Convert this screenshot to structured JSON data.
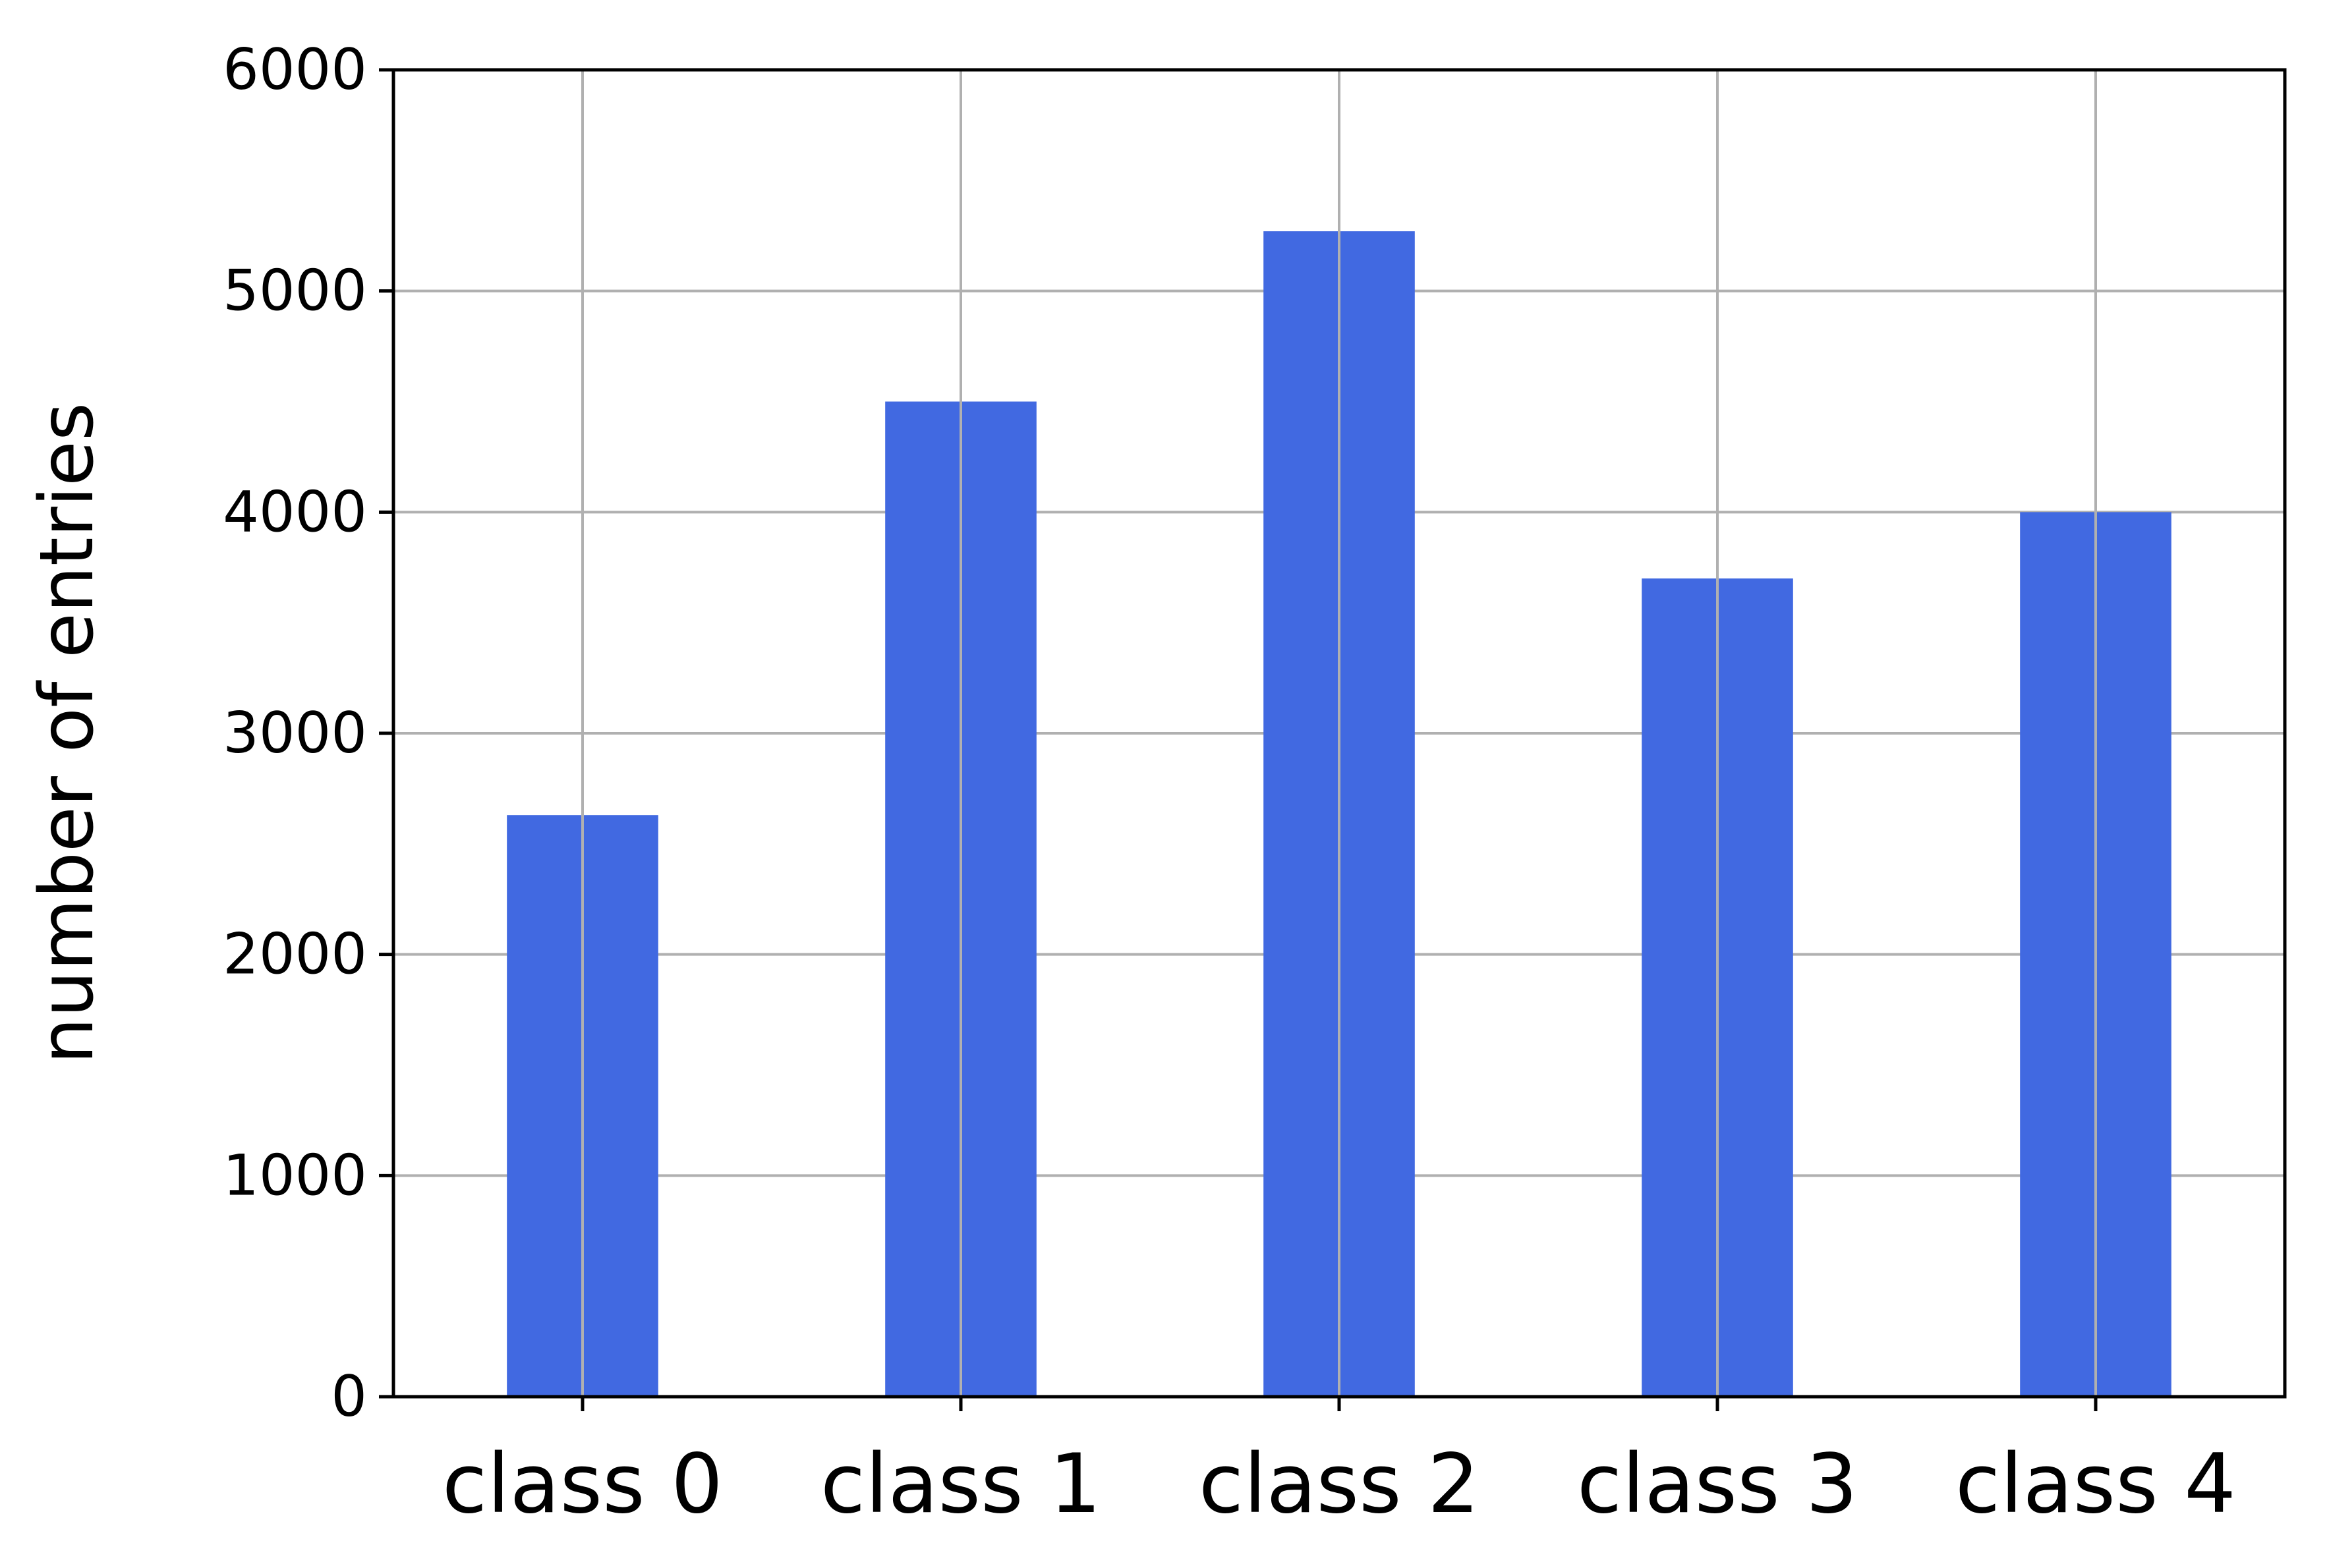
{
  "chart_data": {
    "type": "bar",
    "title": "",
    "xlabel": "",
    "ylabel": "number of entries",
    "categories": [
      "class 0",
      "class 1",
      "class 2",
      "class 3",
      "class 4"
    ],
    "values": [
      2630,
      4500,
      5270,
      3700,
      4000
    ],
    "ylim": [
      0,
      6000
    ],
    "yticks": [
      0,
      1000,
      2000,
      3000,
      4000,
      5000,
      6000
    ],
    "grid": true,
    "legend": "none",
    "colors": {
      "bar": "#4169e1",
      "grid": "#b0b0b0",
      "axis": "#000000"
    }
  }
}
